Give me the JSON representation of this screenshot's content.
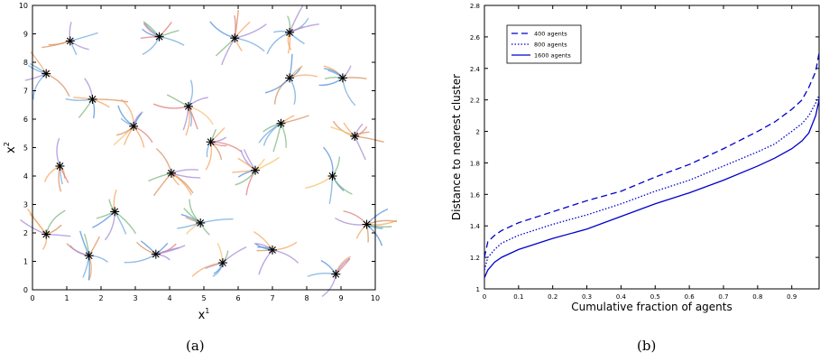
{
  "captions": {
    "a": "(a)",
    "b": "(b)"
  },
  "chart_data": [
    {
      "type": "scatter",
      "xlabel": "x",
      "xlabel_sup": "1",
      "ylabel": "x",
      "ylabel_sup": "2",
      "xlim": [
        0,
        10
      ],
      "ylim": [
        0,
        10
      ],
      "xticks": [
        0,
        1,
        2,
        3,
        4,
        5,
        6,
        7,
        8,
        9,
        10
      ],
      "yticks": [
        0,
        1,
        2,
        3,
        4,
        5,
        6,
        7,
        8,
        9,
        10
      ],
      "marker": "asterisk",
      "cluster_centers": [
        {
          "x": 1.1,
          "y": 8.75
        },
        {
          "x": 3.7,
          "y": 8.9
        },
        {
          "x": 5.9,
          "y": 8.85
        },
        {
          "x": 7.5,
          "y": 9.05
        },
        {
          "x": 0.4,
          "y": 7.6
        },
        {
          "x": 1.75,
          "y": 6.7
        },
        {
          "x": 7.5,
          "y": 7.45
        },
        {
          "x": 9.05,
          "y": 7.45
        },
        {
          "x": 4.55,
          "y": 6.45
        },
        {
          "x": 2.95,
          "y": 5.75
        },
        {
          "x": 7.25,
          "y": 5.85
        },
        {
          "x": 5.2,
          "y": 5.2
        },
        {
          "x": 9.4,
          "y": 5.4
        },
        {
          "x": 0.8,
          "y": 4.35
        },
        {
          "x": 4.05,
          "y": 4.1
        },
        {
          "x": 6.5,
          "y": 4.2
        },
        {
          "x": 8.75,
          "y": 4.0
        },
        {
          "x": 2.4,
          "y": 2.75
        },
        {
          "x": 4.9,
          "y": 2.35
        },
        {
          "x": 9.75,
          "y": 2.3
        },
        {
          "x": 0.4,
          "y": 1.95
        },
        {
          "x": 7.0,
          "y": 1.4
        },
        {
          "x": 1.65,
          "y": 1.2
        },
        {
          "x": 3.6,
          "y": 1.25
        },
        {
          "x": 5.55,
          "y": 0.95
        },
        {
          "x": 8.85,
          "y": 0.55
        }
      ],
      "trajectory_colors": [
        "#4f8fd8",
        "#f4a460",
        "#e07b7b",
        "#f5c16c",
        "#7fb77e",
        "#a58bd6",
        "#d98f5a",
        "#6fa8dc"
      ]
    },
    {
      "type": "line",
      "xlabel": "Cumulative fraction of agents",
      "ylabel": "Distance to nearest cluster",
      "xlim": [
        0,
        0.98
      ],
      "ylim": [
        1,
        2.8
      ],
      "xticks": [
        0,
        0.1,
        0.2,
        0.3,
        0.4,
        0.5,
        0.6,
        0.7,
        0.8,
        0.9
      ],
      "yticks": [
        1,
        1.2,
        1.4,
        1.6,
        1.8,
        2,
        2.2,
        2.4,
        2.6,
        2.8
      ],
      "tick_labels_y": [
        "1",
        "1.2",
        "1.4",
        "1.6",
        "1.8",
        "2",
        "2.2",
        "2.4",
        "2.6",
        "2.8"
      ],
      "legend_position": "top-left",
      "series": [
        {
          "name": "400 agents",
          "style": "dashed",
          "color": "#0000cc",
          "x": [
            0,
            0.01,
            0.03,
            0.05,
            0.1,
            0.2,
            0.3,
            0.4,
            0.5,
            0.6,
            0.7,
            0.8,
            0.85,
            0.9,
            0.93,
            0.95,
            0.97,
            0.98
          ],
          "y": [
            1.2,
            1.3,
            1.34,
            1.37,
            1.42,
            1.49,
            1.56,
            1.62,
            1.71,
            1.79,
            1.89,
            2.0,
            2.06,
            2.14,
            2.2,
            2.28,
            2.38,
            2.5
          ]
        },
        {
          "name": "800 agents",
          "style": "dotted",
          "color": "#0000cc",
          "x": [
            0,
            0.01,
            0.03,
            0.05,
            0.1,
            0.2,
            0.3,
            0.4,
            0.5,
            0.6,
            0.7,
            0.8,
            0.85,
            0.9,
            0.93,
            0.95,
            0.97,
            0.98
          ],
          "y": [
            1.12,
            1.2,
            1.25,
            1.29,
            1.34,
            1.41,
            1.47,
            1.54,
            1.62,
            1.69,
            1.78,
            1.87,
            1.92,
            2.0,
            2.05,
            2.1,
            2.18,
            2.23
          ]
        },
        {
          "name": "1600 agents",
          "style": "solid",
          "color": "#0000cc",
          "x": [
            0,
            0.01,
            0.03,
            0.05,
            0.1,
            0.2,
            0.3,
            0.4,
            0.5,
            0.6,
            0.7,
            0.8,
            0.85,
            0.9,
            0.93,
            0.95,
            0.97,
            0.98
          ],
          "y": [
            1.07,
            1.12,
            1.17,
            1.2,
            1.25,
            1.32,
            1.38,
            1.46,
            1.54,
            1.61,
            1.69,
            1.78,
            1.83,
            1.89,
            1.94,
            1.99,
            2.1,
            2.2
          ]
        }
      ]
    }
  ]
}
